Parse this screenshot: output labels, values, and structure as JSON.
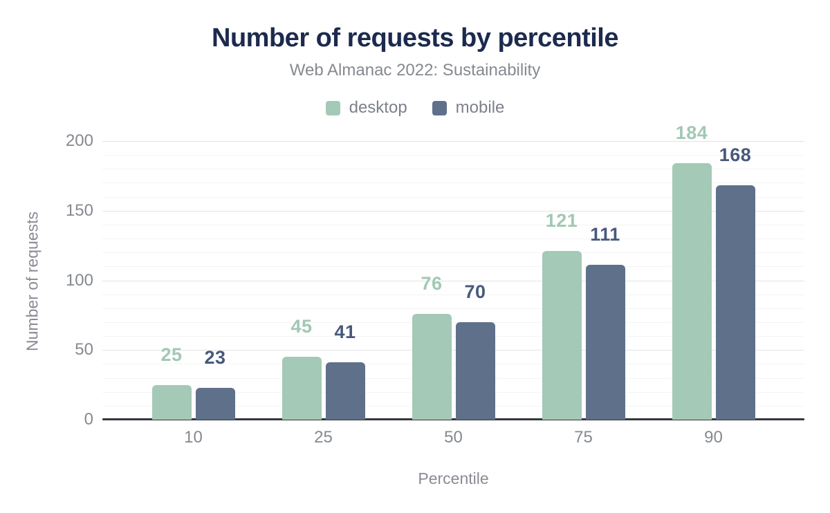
{
  "header": {
    "title": "Number of requests by percentile",
    "subtitle": "Web Almanac 2022: Sustainability"
  },
  "chart_data": {
    "type": "bar",
    "title": "Number of requests by percentile",
    "subtitle": "Web Almanac 2022: Sustainability",
    "categories": [
      "10",
      "25",
      "50",
      "75",
      "90"
    ],
    "series": [
      {
        "name": "desktop",
        "values": [
          25,
          45,
          76,
          121,
          184
        ],
        "color": "#a4c9b6",
        "label_color": "#a2c8b4"
      },
      {
        "name": "mobile",
        "values": [
          23,
          41,
          70,
          111,
          168
        ],
        "color": "#5f708a",
        "label_color": "#48597b"
      }
    ],
    "xlabel": "Percentile",
    "ylabel": "Number of requests",
    "ylim": [
      0,
      200
    ],
    "y_major_ticks": [
      0,
      50,
      100,
      150,
      200
    ],
    "y_minor_step": 10,
    "grid": true,
    "legend_position": "top",
    "data_labels_shown": true
  },
  "colors": {
    "title_text": "#1c2a4e",
    "subtitle_text": "#86898f",
    "axis_text": "#85898f",
    "axis_line": "#33373e",
    "desktop": "#a4c9b6",
    "mobile": "#5f708a",
    "background": "#ffffff"
  }
}
